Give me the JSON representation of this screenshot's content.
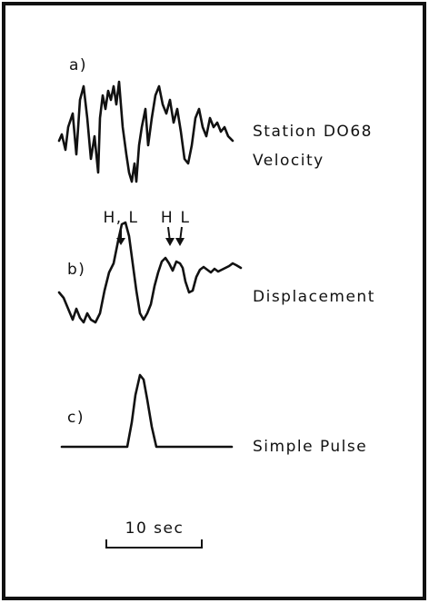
{
  "panels": [
    {
      "label": "a)",
      "caption": [
        "Station DO68",
        "Velocity"
      ]
    },
    {
      "label": "b)",
      "caption": [
        "Displacement"
      ],
      "annotations": [
        "H, L",
        "H",
        "L"
      ]
    },
    {
      "label": "c)",
      "caption": [
        "Simple Pulse"
      ]
    }
  ],
  "scale_bar": "10 sec"
}
